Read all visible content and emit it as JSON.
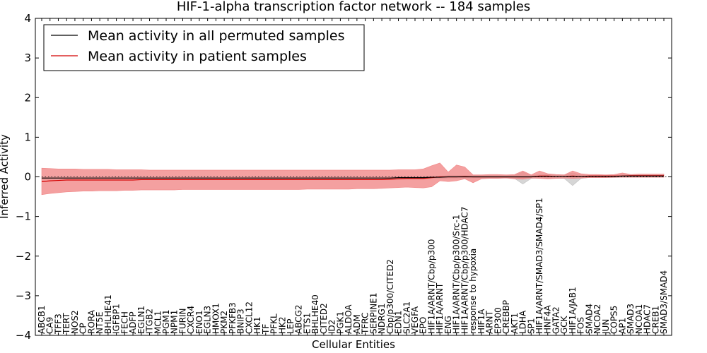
{
  "chart_data": {
    "type": "line",
    "title": "HIF-1-alpha transcription factor network -- 184 samples",
    "xlabel": "Cellular Entities",
    "ylabel": "Inferred Activity",
    "ylim": [
      -4,
      4
    ],
    "yticks": [
      "−4",
      "−3",
      "−2",
      "−1",
      "0",
      "1",
      "2",
      "3",
      "4"
    ],
    "ytick_values": [
      -4,
      -3,
      -2,
      -1,
      0,
      1,
      2,
      3,
      4
    ],
    "legend_position": "top-left",
    "grid": false,
    "zero_line": "dotted",
    "colors": {
      "permuted": "#000000",
      "patient": "#d40000",
      "patient_band": "#f08080",
      "permuted_band": "#bbbbbb"
    },
    "categories": [
      "ABCB1",
      "CA9",
      "TFF3",
      "TERT",
      "NOS2",
      "CP",
      "RORA",
      "NT5E",
      "BHLHE41",
      "IGFBP1",
      "FECH",
      "ADFP",
      "EGLN1",
      "ITGB2",
      "MCL1",
      "PGM1",
      "NPM1",
      "FURIN",
      "CXCR4",
      "ENO1",
      "EGLN3",
      "HMOX1",
      "PKM2",
      "PFKFB3",
      "BNIP3",
      "CXCL12",
      "HK1",
      "TF",
      "PFKL",
      "HK2",
      "LEP",
      "ABCG2",
      "ETS1",
      "BHLHE40",
      "CITED2",
      "ID2",
      "PGK1",
      "ALDOA",
      "ADM",
      "TFRC",
      "SERPINE1",
      "NDRG1",
      "Cbp/p300/CITED2",
      "EDN1",
      "SLC2A1",
      "VEGFA",
      "EPO",
      "HIF1A/ARNT/Cbp/p300",
      "HIF1A/ARNT",
      "ENG",
      "HIF1A/ARNT/Cbp/p300/Src-1",
      "HIF1A/ARNT/Cbp/p300/HDAC7",
      "response to hypoxia",
      "HIF1A",
      "ARNT",
      "EP300",
      "CREBBP",
      "AKT1",
      "LDHA",
      "SP1",
      "HIF1A/ARNT/SMAD3/SMAD4/SP1",
      "HNF4A",
      "GATA2",
      "GCK",
      "HIF1A/JAB1",
      "FOS",
      "SMAD4",
      "NCOA2",
      "JUN",
      "COPS5",
      "AP1",
      "SMAD3",
      "NCOA1",
      "HDAC7",
      "CREB1",
      "SMAD3/SMAD4"
    ],
    "series": [
      {
        "name": "Mean activity in all permuted samples",
        "values": [
          -0.03,
          -0.03,
          -0.03,
          -0.03,
          -0.03,
          -0.03,
          -0.03,
          -0.03,
          -0.03,
          -0.03,
          -0.03,
          -0.03,
          -0.03,
          -0.03,
          -0.03,
          -0.03,
          -0.03,
          -0.03,
          -0.03,
          -0.03,
          -0.03,
          -0.03,
          -0.03,
          -0.03,
          -0.03,
          -0.03,
          -0.03,
          -0.03,
          -0.03,
          -0.03,
          -0.03,
          -0.03,
          -0.03,
          -0.03,
          -0.03,
          -0.03,
          -0.03,
          -0.03,
          -0.03,
          -0.03,
          -0.03,
          -0.03,
          -0.03,
          -0.02,
          -0.02,
          -0.02,
          -0.02,
          -0.01,
          -0.01,
          0.0,
          0.0,
          0.0,
          0.0,
          0.0,
          0.0,
          0.0,
          0.0,
          0.0,
          0.0,
          0.0,
          0.01,
          0.01,
          0.01,
          0.01,
          0.01,
          0.01,
          0.01,
          0.01,
          0.01,
          0.01,
          0.02,
          0.02,
          0.02,
          0.02,
          0.02,
          0.02
        ],
        "band_low": [
          -0.06,
          -0.06,
          -0.06,
          -0.06,
          -0.06,
          -0.06,
          -0.06,
          -0.06,
          -0.06,
          -0.06,
          -0.06,
          -0.06,
          -0.06,
          -0.06,
          -0.06,
          -0.06,
          -0.06,
          -0.06,
          -0.06,
          -0.06,
          -0.06,
          -0.06,
          -0.06,
          -0.06,
          -0.06,
          -0.06,
          -0.06,
          -0.06,
          -0.06,
          -0.06,
          -0.06,
          -0.06,
          -0.06,
          -0.06,
          -0.06,
          -0.06,
          -0.06,
          -0.06,
          -0.06,
          -0.06,
          -0.06,
          -0.06,
          -0.06,
          -0.05,
          -0.05,
          -0.05,
          -0.05,
          -0.04,
          -0.04,
          -0.03,
          -0.03,
          -0.03,
          -0.03,
          -0.03,
          -0.03,
          -0.03,
          -0.03,
          -0.04,
          -0.18,
          -0.04,
          -0.03,
          -0.04,
          -0.04,
          -0.04,
          -0.22,
          -0.04,
          -0.02,
          -0.02,
          -0.02,
          -0.02,
          -0.01,
          -0.01,
          -0.01,
          -0.01,
          -0.01,
          -0.01
        ],
        "band_high": [
          0.0,
          0.0,
          0.0,
          0.0,
          0.0,
          0.0,
          0.0,
          0.0,
          0.0,
          0.0,
          0.0,
          0.0,
          0.0,
          0.0,
          0.0,
          0.0,
          0.0,
          0.0,
          0.0,
          0.0,
          0.0,
          0.0,
          0.0,
          0.0,
          0.0,
          0.0,
          0.0,
          0.0,
          0.0,
          0.0,
          0.0,
          0.0,
          0.0,
          0.0,
          0.0,
          0.0,
          0.0,
          0.0,
          0.0,
          0.0,
          0.0,
          0.0,
          0.0,
          0.01,
          0.01,
          0.01,
          0.01,
          0.02,
          0.02,
          0.03,
          0.03,
          0.03,
          0.03,
          0.03,
          0.03,
          0.03,
          0.03,
          0.04,
          0.12,
          0.04,
          0.05,
          0.06,
          0.05,
          0.05,
          0.1,
          0.05,
          0.04,
          0.04,
          0.04,
          0.04,
          0.05,
          0.05,
          0.05,
          0.05,
          0.05,
          0.05
        ]
      },
      {
        "name": "Mean activity in patient samples",
        "values": [
          -0.12,
          -0.1,
          -0.09,
          -0.08,
          -0.08,
          -0.08,
          -0.08,
          -0.08,
          -0.08,
          -0.08,
          -0.08,
          -0.08,
          -0.07,
          -0.07,
          -0.07,
          -0.07,
          -0.07,
          -0.07,
          -0.07,
          -0.07,
          -0.07,
          -0.07,
          -0.07,
          -0.07,
          -0.07,
          -0.07,
          -0.07,
          -0.07,
          -0.07,
          -0.07,
          -0.07,
          -0.07,
          -0.07,
          -0.07,
          -0.07,
          -0.07,
          -0.07,
          -0.07,
          -0.07,
          -0.07,
          -0.07,
          -0.07,
          -0.06,
          -0.05,
          -0.04,
          -0.04,
          -0.04,
          -0.02,
          0.0,
          0.0,
          0.0,
          0.01,
          0.0,
          0.0,
          0.0,
          0.0,
          0.0,
          0.0,
          0.0,
          0.0,
          0.02,
          0.02,
          0.01,
          0.01,
          0.02,
          0.01,
          0.02,
          0.02,
          0.02,
          0.02,
          0.02,
          0.03,
          0.03,
          0.03,
          0.03,
          0.03
        ],
        "band_low": [
          -0.45,
          -0.42,
          -0.4,
          -0.38,
          -0.37,
          -0.36,
          -0.36,
          -0.35,
          -0.35,
          -0.35,
          -0.34,
          -0.34,
          -0.33,
          -0.33,
          -0.33,
          -0.33,
          -0.33,
          -0.32,
          -0.32,
          -0.32,
          -0.32,
          -0.32,
          -0.32,
          -0.32,
          -0.32,
          -0.32,
          -0.32,
          -0.32,
          -0.32,
          -0.32,
          -0.32,
          -0.32,
          -0.31,
          -0.31,
          -0.31,
          -0.31,
          -0.31,
          -0.31,
          -0.3,
          -0.3,
          -0.3,
          -0.29,
          -0.28,
          -0.27,
          -0.26,
          -0.27,
          -0.28,
          -0.25,
          -0.1,
          -0.12,
          -0.1,
          -0.05,
          -0.15,
          -0.05,
          -0.04,
          -0.04,
          -0.03,
          -0.05,
          -0.06,
          -0.03,
          -0.04,
          -0.05,
          -0.04,
          -0.03,
          -0.04,
          -0.03,
          -0.02,
          -0.02,
          -0.02,
          -0.01,
          -0.01,
          -0.01,
          -0.01,
          -0.01,
          -0.01,
          -0.01
        ],
        "band_high": [
          0.22,
          0.21,
          0.2,
          0.2,
          0.2,
          0.19,
          0.19,
          0.19,
          0.19,
          0.18,
          0.18,
          0.18,
          0.18,
          0.17,
          0.17,
          0.17,
          0.17,
          0.17,
          0.17,
          0.17,
          0.17,
          0.17,
          0.17,
          0.17,
          0.17,
          0.17,
          0.17,
          0.17,
          0.17,
          0.17,
          0.17,
          0.17,
          0.17,
          0.17,
          0.17,
          0.17,
          0.17,
          0.17,
          0.17,
          0.17,
          0.17,
          0.17,
          0.17,
          0.18,
          0.18,
          0.18,
          0.2,
          0.28,
          0.35,
          0.12,
          0.3,
          0.25,
          0.05,
          0.05,
          0.06,
          0.06,
          0.05,
          0.06,
          0.15,
          0.05,
          0.15,
          0.08,
          0.06,
          0.05,
          0.15,
          0.08,
          0.06,
          0.06,
          0.05,
          0.06,
          0.1,
          0.06,
          0.07,
          0.07,
          0.07,
          0.07
        ]
      }
    ]
  }
}
